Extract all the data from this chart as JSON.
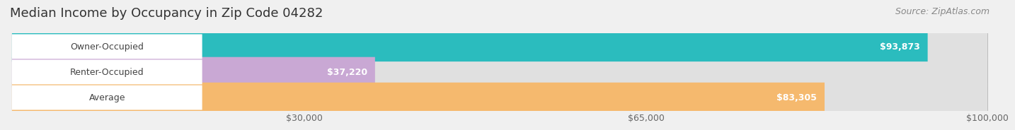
{
  "title": "Median Income by Occupancy in Zip Code 04282",
  "source": "Source: ZipAtlas.com",
  "categories": [
    "Owner-Occupied",
    "Renter-Occupied",
    "Average"
  ],
  "values": [
    93873,
    37220,
    83305
  ],
  "bar_colors": [
    "#2bbcbe",
    "#c9a8d4",
    "#f5b96e"
  ],
  "value_labels": [
    "$93,873",
    "$37,220",
    "$83,305"
  ],
  "x_ticks": [
    30000,
    65000,
    100000
  ],
  "x_tick_labels": [
    "$30,000",
    "$65,000",
    "$100,000"
  ],
  "xmax": 100000,
  "background_color": "#f0f0f0",
  "bar_bg_color": "#e0e0e0",
  "label_bg_color": "#ffffff",
  "title_fontsize": 13,
  "source_fontsize": 9,
  "label_fontsize": 9,
  "value_fontsize": 9,
  "tick_fontsize": 9
}
